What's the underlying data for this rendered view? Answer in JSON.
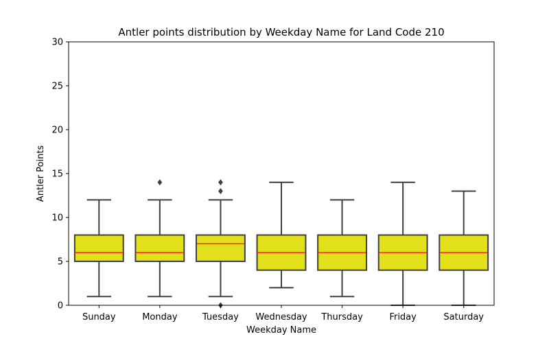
{
  "chart_data": {
    "type": "box",
    "title": "Antler points distribution by Weekday Name for Land Code 210",
    "xlabel": "Weekday Name",
    "ylabel": "Antler Points",
    "ylim": [
      0,
      30
    ],
    "yticks": [
      "0",
      "5",
      "10",
      "15",
      "20",
      "25",
      "30"
    ],
    "categories": [
      "Sunday",
      "Monday",
      "Tuesday",
      "Wednesday",
      "Thursday",
      "Friday",
      "Saturday"
    ],
    "boxes": [
      {
        "whisker_low": 1,
        "q1": 5,
        "median": 6,
        "q3": 8,
        "whisker_high": 12,
        "outliers": []
      },
      {
        "whisker_low": 1,
        "q1": 5,
        "median": 6,
        "q3": 8,
        "whisker_high": 12,
        "outliers": [
          14
        ]
      },
      {
        "whisker_low": 1,
        "q1": 5,
        "median": 7,
        "q3": 8,
        "whisker_high": 12,
        "outliers": [
          0,
          13,
          14
        ]
      },
      {
        "whisker_low": 2,
        "q1": 4,
        "median": 6,
        "q3": 8,
        "whisker_high": 14,
        "outliers": []
      },
      {
        "whisker_low": 1,
        "q1": 4,
        "median": 6,
        "q3": 8,
        "whisker_high": 12,
        "outliers": []
      },
      {
        "whisker_low": 0,
        "q1": 4,
        "median": 6,
        "q3": 8,
        "whisker_high": 14,
        "outliers": []
      },
      {
        "whisker_low": 0,
        "q1": 4,
        "median": 6,
        "q3": 8,
        "whisker_high": 13,
        "outliers": []
      }
    ],
    "grid": false,
    "colors": {
      "box_fill": "#e1e01a",
      "box_edge": "#3f3f3f",
      "median": "#ff2a1a",
      "outlier": "#3f3f3f"
    }
  }
}
